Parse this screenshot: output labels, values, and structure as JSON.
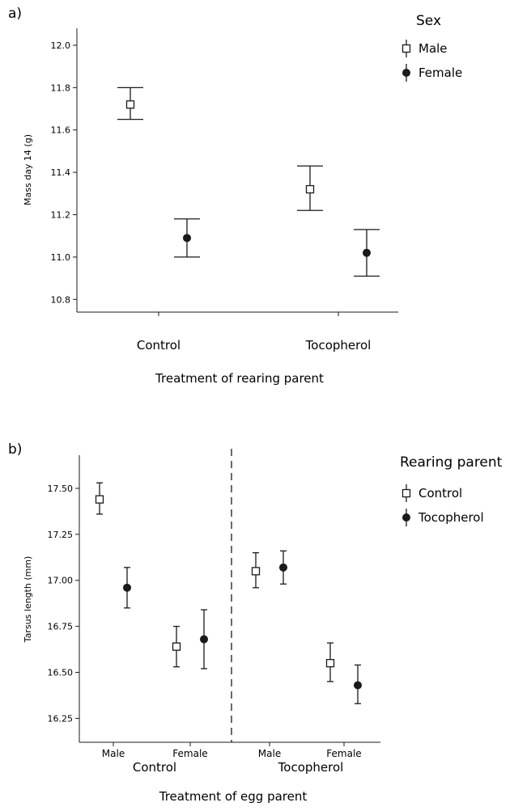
{
  "chart_data": [
    {
      "panel": "a)",
      "type": "scatter",
      "ylabel": "Mass day 14 (g)",
      "xlabel": "Treatment of rearing parent",
      "categories": [
        "Control",
        "Tocopherol"
      ],
      "ylim": [
        10.74,
        12.08
      ],
      "yticks": [
        "10.8",
        "11.0",
        "11.2",
        "11.4",
        "11.6",
        "11.8",
        "12.0"
      ],
      "legend_title": "Sex",
      "legend_position": "right",
      "series": [
        {
          "name": "Male",
          "marker": "open-square",
          "points": [
            {
              "category": "Control",
              "y": 11.72,
              "lo": 11.65,
              "hi": 11.8
            },
            {
              "category": "Tocopherol",
              "y": 11.32,
              "lo": 11.22,
              "hi": 11.43
            }
          ]
        },
        {
          "name": "Female",
          "marker": "filled-circle",
          "points": [
            {
              "category": "Control",
              "y": 11.09,
              "lo": 11.0,
              "hi": 11.18
            },
            {
              "category": "Tocopherol",
              "y": 11.02,
              "lo": 10.91,
              "hi": 11.13
            }
          ]
        }
      ]
    },
    {
      "panel": "b)",
      "type": "scatter",
      "ylabel": "Tarsus length (mm)",
      "xlabel": "Treatment of egg parent",
      "groups": [
        {
          "name": "Control",
          "subcategories": [
            "Male",
            "Female"
          ]
        },
        {
          "name": "Tocopherol",
          "subcategories": [
            "Male",
            "Female"
          ]
        }
      ],
      "ylim": [
        16.12,
        17.68
      ],
      "yticks": [
        "16.25",
        "16.50",
        "16.75",
        "17.00",
        "17.25",
        "17.50"
      ],
      "legend_title": "Rearing parent",
      "legend_position": "right",
      "divider": "dashed vertical line between Control and Tocopherol",
      "series": [
        {
          "name": "Control",
          "marker": "open-square",
          "points": [
            {
              "group": "Control",
              "sub": "Male",
              "y": 17.44,
              "lo": 17.36,
              "hi": 17.53
            },
            {
              "group": "Control",
              "sub": "Female",
              "y": 16.64,
              "lo": 16.53,
              "hi": 16.75
            },
            {
              "group": "Tocopherol",
              "sub": "Male",
              "y": 17.05,
              "lo": 16.96,
              "hi": 17.15
            },
            {
              "group": "Tocopherol",
              "sub": "Female",
              "y": 16.55,
              "lo": 16.45,
              "hi": 16.66
            }
          ]
        },
        {
          "name": "Tocopherol",
          "marker": "filled-circle",
          "points": [
            {
              "group": "Control",
              "sub": "Male",
              "y": 16.96,
              "lo": 16.85,
              "hi": 17.07
            },
            {
              "group": "Control",
              "sub": "Female",
              "y": 16.68,
              "lo": 16.52,
              "hi": 16.84
            },
            {
              "group": "Tocopherol",
              "sub": "Male",
              "y": 17.07,
              "lo": 16.98,
              "hi": 17.16
            },
            {
              "group": "Tocopherol",
              "sub": "Female",
              "y": 16.43,
              "lo": 16.33,
              "hi": 16.54
            }
          ]
        }
      ]
    }
  ]
}
